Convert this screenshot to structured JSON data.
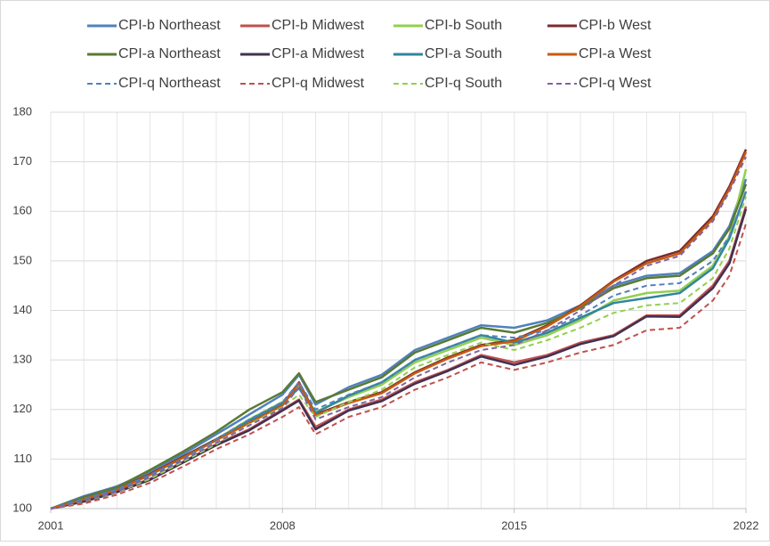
{
  "chart_data": {
    "type": "line",
    "x": [
      2001,
      2002,
      2003,
      2004,
      2005,
      2006,
      2007,
      2008,
      2008.5,
      2009,
      2010,
      2011,
      2012,
      2013,
      2014,
      2015,
      2016,
      2017,
      2018,
      2019,
      2020,
      2021,
      2021.5,
      2022
    ],
    "xlim": [
      2001,
      2022
    ],
    "xticks": [
      2001,
      2008,
      2015,
      2022
    ],
    "ylim": [
      100,
      180
    ],
    "yticks": [
      100,
      110,
      120,
      130,
      140,
      150,
      160,
      170,
      180
    ],
    "grid": true,
    "series": [
      {
        "name": "CPI-b Northeast",
        "color": "#4f81bd",
        "dash": false,
        "values": [
          100,
          102.5,
          104.5,
          107.5,
          111,
          115,
          119,
          123,
          127,
          121,
          124.5,
          127,
          132,
          134.5,
          137,
          136.5,
          138,
          141,
          145,
          147,
          147.5,
          152,
          157,
          166.5
        ]
      },
      {
        "name": "CPI-b Midwest",
        "color": "#c0504d",
        "dash": false,
        "values": [
          100,
          101.5,
          103.5,
          106,
          109.5,
          113,
          116,
          120,
          122,
          116.5,
          120,
          122,
          125.5,
          128,
          131,
          129.5,
          131,
          133.5,
          135,
          139,
          139,
          145,
          150,
          161
        ]
      },
      {
        "name": "CPI-b South",
        "color": "#92d050",
        "dash": false,
        "values": [
          100,
          102,
          104,
          107,
          110.5,
          114,
          118,
          121.5,
          124.5,
          119.5,
          122.5,
          125,
          129.5,
          132,
          134.5,
          133,
          135,
          138,
          142,
          143.5,
          144,
          149,
          155,
          168.5
        ]
      },
      {
        "name": "CPI-b West",
        "color": "#7b2c2c",
        "dash": false,
        "values": [
          100,
          102,
          104,
          107,
          110.5,
          114,
          117.5,
          121,
          125.5,
          119,
          121.5,
          123.5,
          127.5,
          130.5,
          133,
          134,
          137,
          141,
          146,
          150,
          152,
          159,
          165,
          172.5
        ]
      },
      {
        "name": "CPI-a Northeast",
        "color": "#5a7a32",
        "dash": false,
        "values": [
          100,
          102.3,
          104.3,
          107.8,
          111.5,
          115.5,
          120,
          123.5,
          127.3,
          121.5,
          124,
          126.5,
          131.5,
          134,
          136.5,
          135.5,
          137.5,
          140.5,
          144.5,
          146.5,
          147,
          151.5,
          156.5,
          165.5
        ]
      },
      {
        "name": "CPI-a Midwest",
        "color": "#403151",
        "dash": false,
        "values": [
          100,
          101.4,
          103.3,
          105.8,
          109.3,
          112.8,
          115.8,
          119.8,
          121.8,
          116,
          119.8,
          121.7,
          125.2,
          127.8,
          130.7,
          129,
          130.7,
          133.2,
          134.8,
          138.8,
          138.7,
          144.5,
          149.5,
          160.5
        ]
      },
      {
        "name": "CPI-a South",
        "color": "#31859c",
        "dash": false,
        "values": [
          100,
          101.9,
          103.9,
          106.8,
          110.3,
          113.8,
          117.8,
          121.3,
          124.3,
          119.3,
          122.8,
          125.5,
          130,
          132.5,
          135,
          133.5,
          135.5,
          138.5,
          141.5,
          142.5,
          143.5,
          148.5,
          154.5,
          164
        ]
      },
      {
        "name": "CPI-a West",
        "color": "#c55a11",
        "dash": false,
        "values": [
          100,
          101.9,
          103.8,
          106.8,
          110.3,
          113.8,
          117.3,
          120.8,
          125.3,
          118.8,
          121.3,
          123.3,
          127.3,
          130.3,
          132.8,
          133.8,
          136.8,
          140.8,
          145.8,
          149.5,
          151.5,
          158.5,
          164.5,
          172
        ]
      },
      {
        "name": "CPI-q Northeast",
        "color": "#4f81bd",
        "dash": true,
        "values": [
          100,
          102,
          103.8,
          106.8,
          110,
          114,
          118,
          121.5,
          125.5,
          120,
          123,
          125.5,
          130,
          132.5,
          135,
          134.5,
          136,
          139,
          143,
          145,
          145.5,
          150,
          155,
          164
        ]
      },
      {
        "name": "CPI-q Midwest",
        "color": "#c0504d",
        "dash": true,
        "values": [
          100,
          101,
          102.8,
          105.2,
          108.5,
          112,
          115,
          118.5,
          120.5,
          115,
          118.5,
          120.5,
          124,
          126.5,
          129.5,
          128,
          129.5,
          131.5,
          133,
          136,
          136.5,
          142,
          147,
          157.5
        ]
      },
      {
        "name": "CPI-q South",
        "color": "#92d050",
        "dash": true,
        "values": [
          100,
          101.5,
          103.3,
          106,
          109.5,
          113,
          117,
          120.5,
          123,
          118.5,
          121.5,
          124,
          128.5,
          131,
          133.5,
          132,
          134,
          136.5,
          139.5,
          141,
          141.5,
          146.5,
          152.5,
          163
        ]
      },
      {
        "name": "CPI-q West",
        "color": "#8064a2",
        "dash": true,
        "values": [
          100,
          101.6,
          103.4,
          106.4,
          109.8,
          113.3,
          116.8,
          120.3,
          124.5,
          118,
          120.5,
          122.5,
          126.5,
          129.5,
          132,
          133,
          136,
          140,
          145,
          149,
          151,
          158,
          164,
          171
        ]
      }
    ]
  }
}
